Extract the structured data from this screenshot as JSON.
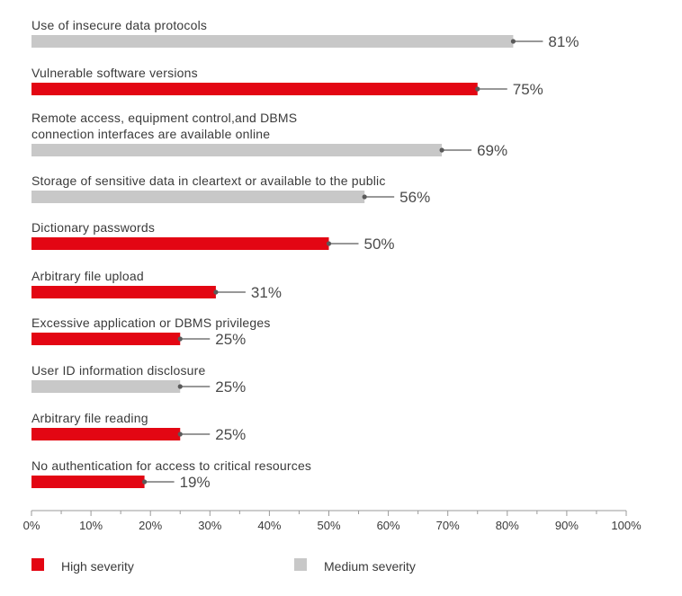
{
  "chart_data": {
    "type": "bar",
    "orientation": "horizontal",
    "title": "",
    "xlabel": "",
    "ylabel": "",
    "xlim": [
      0,
      100
    ],
    "xticks": [
      "0%",
      "10%",
      "20%",
      "30%",
      "40%",
      "50%",
      "60%",
      "70%",
      "80%",
      "90%",
      "100%"
    ],
    "value_suffix": "%",
    "categories": [
      [
        "Use of insecure data protocols"
      ],
      [
        "Vulnerable software versions"
      ],
      [
        "Remote access, equipment control,and DBMS",
        "connection interfaces are available online"
      ],
      [
        "Storage of sensitive data in cleartext or available to the public"
      ],
      [
        "Dictionary passwords"
      ],
      [
        "Arbitrary file upload"
      ],
      [
        "Excessive application or DBMS privileges"
      ],
      [
        "User ID information disclosure"
      ],
      [
        "Arbitrary file reading"
      ],
      [
        "No authentication for access to critical resources"
      ]
    ],
    "values": [
      81,
      75,
      69,
      56,
      50,
      31,
      25,
      25,
      25,
      19
    ],
    "severity": [
      "medium",
      "high",
      "medium",
      "medium",
      "high",
      "high",
      "high",
      "medium",
      "high",
      "high"
    ],
    "legend": [
      {
        "key": "high",
        "label": "High severity",
        "color": "#e30613"
      },
      {
        "key": "medium",
        "label": "Medium severity",
        "color": "#c8c8c8"
      }
    ],
    "colors": {
      "high": "#e30613",
      "medium": "#c8c8c8",
      "marker": "#5a5a5a",
      "axis": "#9a9a9a"
    }
  }
}
